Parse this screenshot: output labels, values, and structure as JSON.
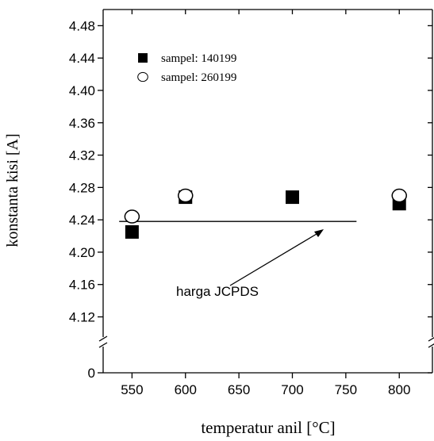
{
  "chart_data": {
    "type": "scatter",
    "y_label": "konstanta kisi [A]",
    "x_label": "temperatur anil [°C]",
    "xlim": [
      523,
      831
    ],
    "xticks": [
      550,
      600,
      650,
      700,
      750,
      800
    ],
    "ylim": [
      0,
      4.5
    ],
    "y_break": [
      0.5,
      4.095
    ],
    "yticks": [
      0,
      {
        "value": 4.12,
        "label": "4.12"
      },
      4.16,
      {
        "value": 4.2,
        "label": "4.20"
      },
      4.24,
      4.28,
      4.32,
      4.36,
      {
        "value": 4.4,
        "label": "4.40"
      },
      4.44,
      4.48
    ],
    "series": [
      {
        "name": "sampel: 140199",
        "marker": "square",
        "color": "#000000",
        "x": [
          550,
          600,
          700,
          800
        ],
        "values": [
          4.225,
          4.268,
          4.268,
          4.26
        ]
      },
      {
        "name": "sampel: 260199",
        "marker": "circle",
        "color": "#ffffff",
        "x": [
          550,
          600,
          800
        ],
        "values": [
          4.244,
          4.27,
          4.27
        ]
      }
    ],
    "reference_line": {
      "y": 4.238,
      "x": [
        538,
        760
      ],
      "label": "harga JCPDS"
    }
  }
}
